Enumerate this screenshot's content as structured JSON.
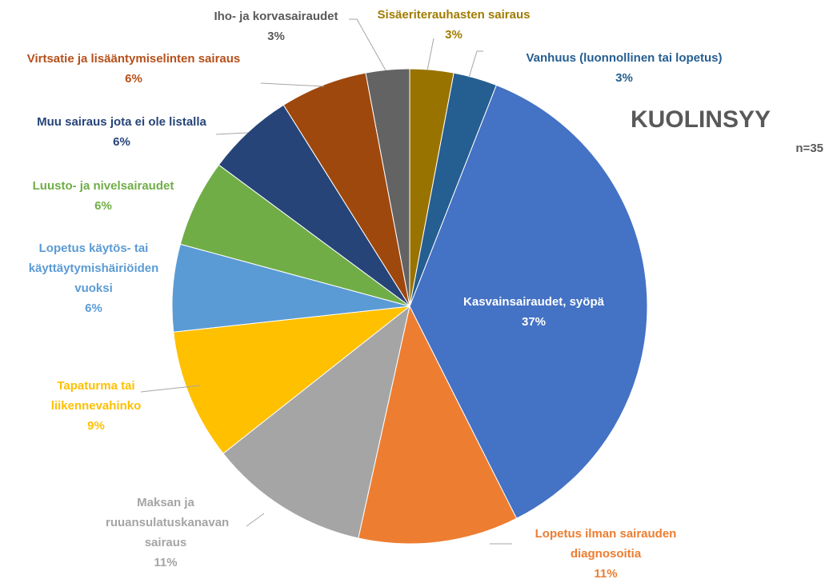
{
  "chart_data": {
    "type": "pie",
    "title": "KUOLINSYY",
    "subtitle": "n=35",
    "categories": [
      "Sisäeriterauhasten sairaus",
      "Vanhuus (luonnollinen tai lopetus)",
      "Kasvainsairaudet, syöpä",
      "Lopetus ilman sairauden diagnosoitia",
      "Maksan ja ruuansulatuskanavan sairaus",
      "Tapaturma tai liikennevahinko",
      "Lopetus käytös- tai käyttäytymishäiriöiden vuoksi",
      "Luusto- ja nivelsairaudet",
      "Muu sairaus jota ei ole listalla",
      "Virtsatie ja lisääntymiselinten sairaus",
      "Iho- ja korvasairaudet"
    ],
    "values": [
      3,
      3,
      37,
      11,
      11,
      9,
      6,
      6,
      6,
      6,
      3
    ],
    "value_labels": [
      "3%",
      "3%",
      "37%",
      "11%",
      "11%",
      "9%",
      "6%",
      "6%",
      "6%",
      "6%",
      "3%"
    ],
    "colors": [
      "#997300",
      "#255e91",
      "#4472c4",
      "#ed7d31",
      "#a5a5a5",
      "#ffc000",
      "#5b9bd5",
      "#70ad47",
      "#264478",
      "#9e480e",
      "#636363"
    ]
  }
}
